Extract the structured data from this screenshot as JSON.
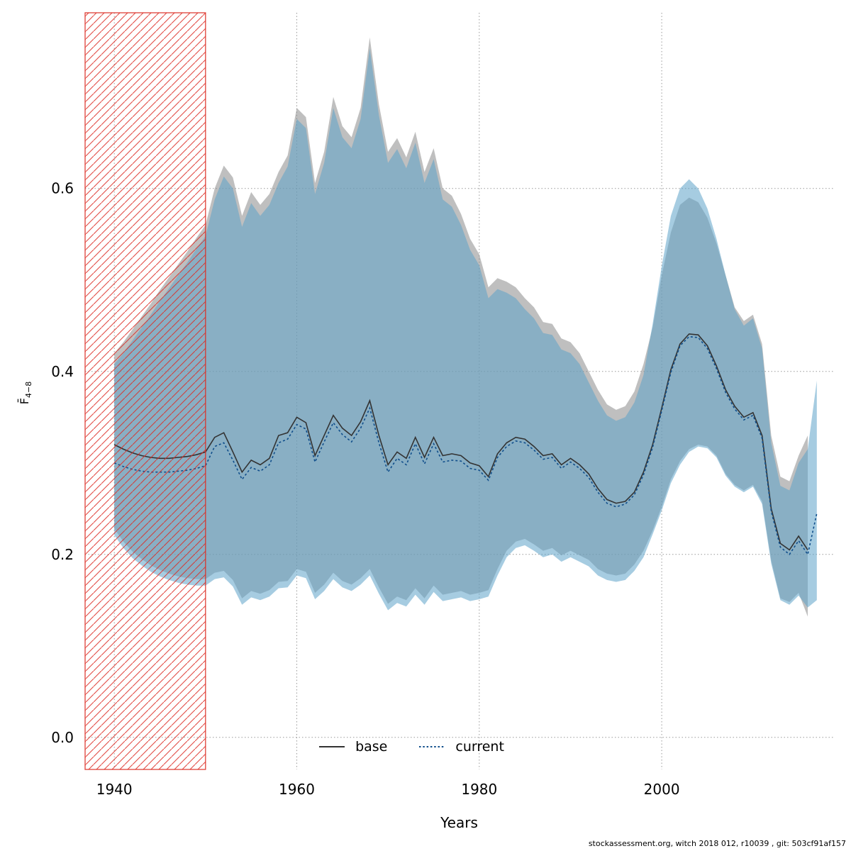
{
  "chart_data": {
    "type": "line",
    "title": "",
    "xlabel": "Years",
    "ylabel_base": "F̄",
    "ylabel_sub": "4−8",
    "x_range": [
      1936.8,
      2018.8
    ],
    "y_range": [
      -0.035,
      0.792
    ],
    "x_ticks": [
      1940,
      1960,
      1980,
      2000
    ],
    "y_ticks": [
      {
        "value": 0.0,
        "label": "0.0"
      },
      {
        "value": 0.2,
        "label": "0.2"
      },
      {
        "value": 0.4,
        "label": "0.4"
      },
      {
        "value": 0.6,
        "label": "0.6"
      }
    ],
    "grid": {
      "color": "#9a9a9a",
      "style": "dotted"
    },
    "hatch_color": "#dd2c23",
    "hatch_region": {
      "x_start": 1936.8,
      "x_end": 1950
    },
    "legend": {
      "position": "bottom-center",
      "items": [
        {
          "label": "base"
        },
        {
          "label": "current"
        }
      ]
    },
    "series": [
      {
        "name": "base",
        "line_style": "solid",
        "line_color": "#333333",
        "band_color": "#8a8a8a",
        "band_opacity": 0.55,
        "x_start": 1940,
        "x_step": 1,
        "mean": [
          0.32,
          0.315,
          0.311,
          0.308,
          0.306,
          0.305,
          0.305,
          0.306,
          0.307,
          0.309,
          0.312,
          0.328,
          0.333,
          0.312,
          0.29,
          0.303,
          0.298,
          0.305,
          0.33,
          0.333,
          0.35,
          0.344,
          0.308,
          0.33,
          0.352,
          0.338,
          0.33,
          0.345,
          0.368,
          0.33,
          0.298,
          0.312,
          0.305,
          0.328,
          0.306,
          0.328,
          0.308,
          0.31,
          0.308,
          0.3,
          0.297,
          0.285,
          0.31,
          0.322,
          0.328,
          0.326,
          0.318,
          0.308,
          0.31,
          0.298,
          0.305,
          0.298,
          0.288,
          0.272,
          0.26,
          0.256,
          0.258,
          0.268,
          0.29,
          0.32,
          0.36,
          0.402,
          0.43,
          0.441,
          0.44,
          0.428,
          0.406,
          0.38,
          0.362,
          0.35,
          0.355,
          0.33,
          0.25,
          0.212,
          0.205,
          0.22,
          0.205
        ],
        "lower": [
          0.228,
          0.214,
          0.203,
          0.195,
          0.188,
          0.183,
          0.179,
          0.176,
          0.174,
          0.173,
          0.173,
          0.18,
          0.182,
          0.172,
          0.152,
          0.16,
          0.157,
          0.161,
          0.17,
          0.171,
          0.184,
          0.181,
          0.158,
          0.167,
          0.18,
          0.171,
          0.167,
          0.174,
          0.184,
          0.164,
          0.146,
          0.154,
          0.15,
          0.163,
          0.152,
          0.166,
          0.156,
          0.158,
          0.16,
          0.156,
          0.158,
          0.161,
          0.184,
          0.204,
          0.214,
          0.217,
          0.211,
          0.204,
          0.207,
          0.199,
          0.204,
          0.199,
          0.194,
          0.184,
          0.179,
          0.177,
          0.179,
          0.189,
          0.204,
          0.226,
          0.252,
          0.282,
          0.302,
          0.315,
          0.32,
          0.318,
          0.308,
          0.288,
          0.276,
          0.27,
          0.276,
          0.258,
          0.193,
          0.152,
          0.148,
          0.158,
          0.132
        ],
        "upper": [
          0.42,
          0.432,
          0.446,
          0.46,
          0.474,
          0.489,
          0.503,
          0.517,
          0.531,
          0.546,
          0.56,
          0.6,
          0.625,
          0.612,
          0.57,
          0.596,
          0.582,
          0.594,
          0.618,
          0.636,
          0.688,
          0.678,
          0.606,
          0.64,
          0.7,
          0.668,
          0.656,
          0.688,
          0.765,
          0.692,
          0.64,
          0.655,
          0.634,
          0.662,
          0.618,
          0.644,
          0.6,
          0.592,
          0.572,
          0.545,
          0.528,
          0.492,
          0.502,
          0.498,
          0.492,
          0.48,
          0.47,
          0.454,
          0.452,
          0.436,
          0.432,
          0.42,
          0.4,
          0.38,
          0.364,
          0.358,
          0.362,
          0.378,
          0.408,
          0.448,
          0.505,
          0.552,
          0.582,
          0.59,
          0.585,
          0.568,
          0.54,
          0.505,
          0.47,
          0.455,
          0.462,
          0.43,
          0.33,
          0.285,
          0.28,
          0.308,
          0.33
        ]
      },
      {
        "name": "current",
        "line_style": "dotted",
        "line_color": "#104e8b",
        "band_color": "#5da2c8",
        "band_opacity": 0.55,
        "x_start": 1940,
        "x_step": 1,
        "mean": [
          0.3,
          0.296,
          0.293,
          0.291,
          0.29,
          0.29,
          0.29,
          0.291,
          0.292,
          0.294,
          0.297,
          0.318,
          0.322,
          0.303,
          0.282,
          0.295,
          0.291,
          0.298,
          0.322,
          0.326,
          0.342,
          0.337,
          0.301,
          0.323,
          0.344,
          0.331,
          0.323,
          0.338,
          0.36,
          0.322,
          0.29,
          0.305,
          0.298,
          0.321,
          0.299,
          0.321,
          0.301,
          0.303,
          0.302,
          0.294,
          0.292,
          0.281,
          0.306,
          0.318,
          0.324,
          0.322,
          0.314,
          0.304,
          0.306,
          0.294,
          0.301,
          0.294,
          0.284,
          0.268,
          0.256,
          0.252,
          0.255,
          0.265,
          0.287,
          0.317,
          0.357,
          0.399,
          0.428,
          0.438,
          0.437,
          0.425,
          0.403,
          0.377,
          0.359,
          0.347,
          0.352,
          0.327,
          0.247,
          0.208,
          0.2,
          0.215,
          0.2,
          0.245
        ],
        "lower": [
          0.221,
          0.207,
          0.196,
          0.188,
          0.181,
          0.176,
          0.172,
          0.169,
          0.167,
          0.166,
          0.166,
          0.173,
          0.175,
          0.165,
          0.145,
          0.153,
          0.15,
          0.154,
          0.163,
          0.164,
          0.177,
          0.174,
          0.151,
          0.16,
          0.173,
          0.164,
          0.16,
          0.167,
          0.177,
          0.157,
          0.139,
          0.147,
          0.143,
          0.156,
          0.145,
          0.159,
          0.149,
          0.151,
          0.153,
          0.149,
          0.151,
          0.154,
          0.177,
          0.197,
          0.207,
          0.21,
          0.204,
          0.197,
          0.2,
          0.192,
          0.197,
          0.192,
          0.187,
          0.177,
          0.172,
          0.17,
          0.172,
          0.182,
          0.197,
          0.222,
          0.248,
          0.278,
          0.298,
          0.312,
          0.318,
          0.316,
          0.306,
          0.286,
          0.274,
          0.268,
          0.274,
          0.255,
          0.19,
          0.15,
          0.145,
          0.155,
          0.142,
          0.15
        ],
        "upper": [
          0.408,
          0.42,
          0.434,
          0.448,
          0.462,
          0.477,
          0.491,
          0.505,
          0.519,
          0.534,
          0.548,
          0.588,
          0.613,
          0.6,
          0.558,
          0.584,
          0.57,
          0.582,
          0.606,
          0.624,
          0.676,
          0.666,
          0.594,
          0.628,
          0.688,
          0.656,
          0.644,
          0.676,
          0.753,
          0.68,
          0.628,
          0.643,
          0.622,
          0.65,
          0.606,
          0.632,
          0.588,
          0.58,
          0.56,
          0.533,
          0.516,
          0.48,
          0.49,
          0.486,
          0.48,
          0.468,
          0.458,
          0.442,
          0.44,
          0.424,
          0.42,
          0.408,
          0.388,
          0.368,
          0.352,
          0.346,
          0.35,
          0.366,
          0.396,
          0.452,
          0.515,
          0.57,
          0.6,
          0.61,
          0.6,
          0.578,
          0.545,
          0.505,
          0.468,
          0.45,
          0.458,
          0.425,
          0.322,
          0.275,
          0.27,
          0.3,
          0.315,
          0.39
        ]
      }
    ]
  },
  "footer": {
    "text": "stockassessment.org, witch 2018 012, r10039 , git: 503cf91af157"
  }
}
